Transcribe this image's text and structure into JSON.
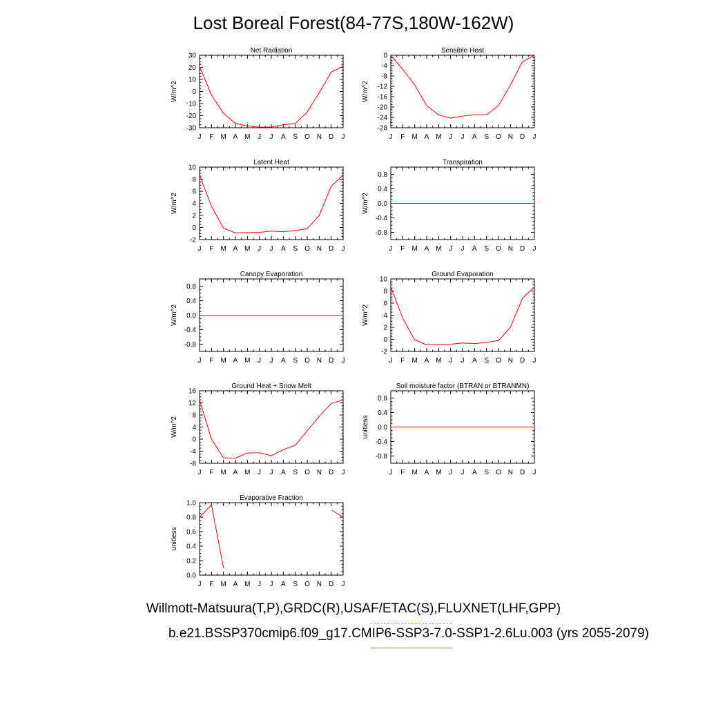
{
  "title": "Lost Boreal Forest(84-77S,180W-162W)",
  "footer": {
    "line1": "Willmott-Matsuura(T,P),GRDC(R),USAF/ETAC(S),FLUXNET(LHF,GPP)",
    "line2": "b.e21.BSSP370cmip6.f09_g17.CMIP6-SSP3-7.0-SSP1-2.6Lu.003 (yrs 2055-2079)"
  },
  "colors": {
    "series": "#ff0000",
    "axis": "#000000",
    "dash": "#8888ff",
    "underline": "#ff6666"
  },
  "chart_data": [
    {
      "type": "line",
      "title": "Net Radiation",
      "ylabel": "W/m^2",
      "x": [
        "J",
        "F",
        "M",
        "A",
        "M",
        "J",
        "J",
        "A",
        "S",
        "O",
        "N",
        "D",
        "J"
      ],
      "ylim": [
        -30,
        30
      ],
      "yticks": [
        "30",
        "20",
        "10",
        "0",
        "-10",
        "-20",
        "-30"
      ],
      "ytick_values": [
        30,
        20,
        10,
        0,
        -10,
        -20,
        -30
      ],
      "values": [
        21,
        -3,
        -18,
        -26.5,
        -28.5,
        -29.5,
        -29.5,
        -27.5,
        -26.5,
        -17,
        -1,
        16,
        21
      ]
    },
    {
      "type": "line",
      "title": "Sensible Heat",
      "ylabel": "W/m^2",
      "x": [
        "J",
        "F",
        "M",
        "A",
        "M",
        "J",
        "J",
        "A",
        "S",
        "O",
        "N",
        "D",
        "J"
      ],
      "ylim": [
        -28,
        0
      ],
      "yticks": [
        "0",
        "-4",
        "-8",
        "-12",
        "-16",
        "-20",
        "-24",
        "-28"
      ],
      "ytick_values": [
        0,
        -4,
        -8,
        -12,
        -16,
        -20,
        -24,
        -28
      ],
      "values": [
        0,
        -5.5,
        -11.5,
        -19.5,
        -23,
        -24.3,
        -23.5,
        -23,
        -23,
        -19.5,
        -11.5,
        -2.5,
        0
      ]
    },
    {
      "type": "line",
      "title": "Latent Heat",
      "ylabel": "W/m^2",
      "x": [
        "J",
        "F",
        "M",
        "A",
        "M",
        "J",
        "J",
        "A",
        "S",
        "O",
        "N",
        "D",
        "J"
      ],
      "ylim": [
        -2,
        10
      ],
      "yticks": [
        "10",
        "8",
        "6",
        "4",
        "2",
        "0",
        "-2"
      ],
      "ytick_values": [
        10,
        8,
        6,
        4,
        2,
        0,
        -2
      ],
      "values": [
        8.7,
        3.5,
        -0.1,
        -0.9,
        -0.85,
        -0.8,
        -0.6,
        -0.7,
        -0.5,
        -0.2,
        2,
        6.8,
        8.7
      ]
    },
    {
      "type": "line",
      "title": "Transpiration",
      "ylabel": "W/m^2",
      "x": [
        "J",
        "F",
        "M",
        "A",
        "M",
        "J",
        "J",
        "A",
        "S",
        "O",
        "N",
        "D",
        "J"
      ],
      "ylim": [
        -1,
        1
      ],
      "yticks": [
        "0.8",
        "0.4",
        "0.0",
        "-0.4",
        "-0.8"
      ],
      "ytick_values": [
        0.8,
        0.4,
        0,
        -0.4,
        -0.8
      ],
      "values": [
        0,
        0,
        0,
        0,
        0,
        0,
        0,
        0,
        0,
        0,
        0,
        0,
        0
      ]
    },
    {
      "type": "line",
      "title": "Canopy Evaporation",
      "ylabel": "W/m^2",
      "x": [
        "J",
        "F",
        "M",
        "A",
        "M",
        "J",
        "J",
        "A",
        "S",
        "O",
        "N",
        "D",
        "J"
      ],
      "ylim": [
        -1,
        1
      ],
      "yticks": [
        "0.8",
        "0.4",
        "0.0",
        "-0.4",
        "-0.8"
      ],
      "ytick_values": [
        0.8,
        0.4,
        0,
        -0.4,
        -0.8
      ],
      "values": [
        0,
        0,
        0,
        0,
        0,
        0,
        0,
        0,
        0,
        0,
        0,
        0,
        0
      ]
    },
    {
      "type": "line",
      "title": "Ground Evaporation",
      "ylabel": "W/m^2",
      "x": [
        "J",
        "F",
        "M",
        "A",
        "M",
        "J",
        "J",
        "A",
        "S",
        "O",
        "N",
        "D",
        "J"
      ],
      "ylim": [
        -2,
        10
      ],
      "yticks": [
        "10",
        "8",
        "6",
        "4",
        "2",
        "0",
        "-2"
      ],
      "ytick_values": [
        10,
        8,
        6,
        4,
        2,
        0,
        -2
      ],
      "values": [
        8.7,
        3.5,
        -0.1,
        -0.9,
        -0.85,
        -0.8,
        -0.6,
        -0.7,
        -0.5,
        -0.2,
        2,
        6.8,
        8.7
      ]
    },
    {
      "type": "line",
      "title": "Ground Heat + Snow Melt",
      "ylabel": "W/m^2",
      "x": [
        "J",
        "F",
        "M",
        "A",
        "M",
        "J",
        "J",
        "A",
        "S",
        "O",
        "N",
        "D",
        "J"
      ],
      "ylim": [
        -8,
        16
      ],
      "yticks": [
        "16",
        "12",
        "8",
        "4",
        "0",
        "-4",
        "-8"
      ],
      "ytick_values": [
        16,
        12,
        8,
        4,
        0,
        -4,
        -8
      ],
      "values": [
        13,
        0,
        -6.2,
        -6.3,
        -4.6,
        -4.5,
        -5.5,
        -3.5,
        -2,
        2.8,
        7.5,
        11.8,
        13
      ]
    },
    {
      "type": "line",
      "title": "Soil moisture factor (BTRAN or BTRANMN)",
      "ylabel": "unitless",
      "x": [
        "J",
        "F",
        "M",
        "A",
        "M",
        "J",
        "J",
        "A",
        "S",
        "O",
        "N",
        "D",
        "J"
      ],
      "ylim": [
        -1,
        1
      ],
      "yticks": [
        "0.8",
        "0.4",
        "0.0",
        "-0.4",
        "-0.8"
      ],
      "ytick_values": [
        0.8,
        0.4,
        0,
        -0.4,
        -0.8
      ],
      "values": [
        0,
        0,
        0,
        0,
        0,
        0,
        0,
        0,
        0,
        0,
        0,
        0,
        0
      ]
    },
    {
      "type": "line",
      "title": "Evaporative Fraction",
      "ylabel": "unitless",
      "x": [
        "J",
        "F",
        "M",
        "A",
        "M",
        "J",
        "J",
        "A",
        "S",
        "O",
        "N",
        "D",
        "J"
      ],
      "ylim": [
        0,
        1
      ],
      "yticks": [
        "1.0",
        "0.8",
        "0.6",
        "0.4",
        "0.2",
        "0.0"
      ],
      "ytick_values": [
        1,
        0.8,
        0.6,
        0.4,
        0.2,
        0
      ],
      "values": [
        0.8,
        0.97,
        0.1,
        null,
        null,
        null,
        null,
        null,
        null,
        null,
        null,
        0.9,
        0.8
      ]
    }
  ]
}
